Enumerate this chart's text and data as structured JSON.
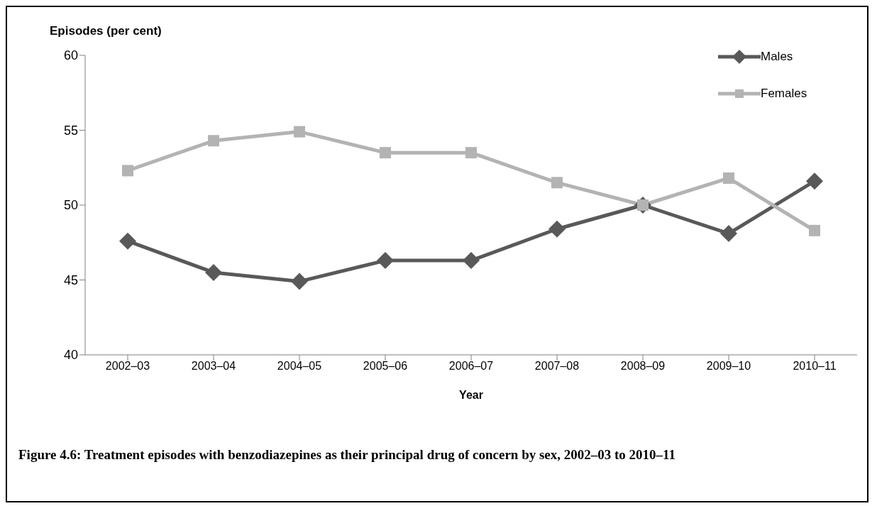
{
  "chart_data": {
    "type": "line",
    "title": "Figure 4.6: Treatment episodes with benzodiazepines as their principal drug of concern by sex, 2002–03 to 2010–11",
    "xlabel": "Year",
    "ylabel": "Episodes (per cent)",
    "categories": [
      "2002–03",
      "2003–04",
      "2004–05",
      "2005–06",
      "2006–07",
      "2007–08",
      "2008–09",
      "2009–10",
      "2010–11"
    ],
    "series": [
      {
        "name": "Males",
        "color": "#595959",
        "marker": "diamond",
        "values": [
          47.6,
          45.5,
          44.9,
          46.3,
          46.3,
          48.4,
          50.0,
          48.1,
          51.6
        ]
      },
      {
        "name": "Females",
        "color": "#b3b3b3",
        "marker": "square",
        "values": [
          52.3,
          54.3,
          54.9,
          53.5,
          53.5,
          51.5,
          50.0,
          51.8,
          48.3
        ]
      }
    ],
    "ylim": [
      40,
      60
    ],
    "yticks": [
      40,
      45,
      50,
      55,
      60
    ],
    "grid": false,
    "legend": "top right",
    "line_style": "solid"
  }
}
